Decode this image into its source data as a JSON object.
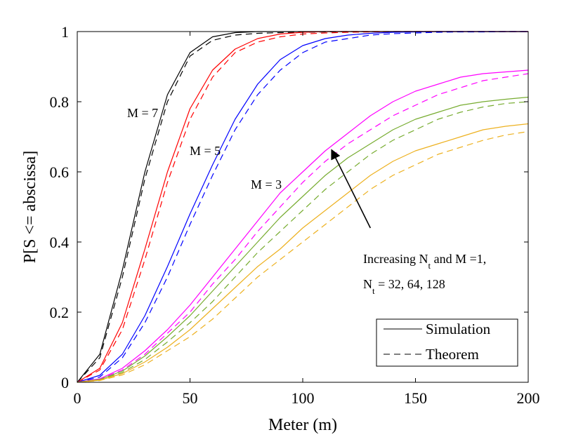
{
  "chart_data": {
    "type": "line",
    "xlabel": "Meter (m)",
    "ylabel": "P[S <= abscissa]",
    "xlim": [
      0,
      200
    ],
    "ylim": [
      0,
      1
    ],
    "xticks": [
      0,
      50,
      100,
      150,
      200
    ],
    "yticks": [
      0,
      0.2,
      0.4,
      0.6,
      0.8,
      1
    ],
    "xtick_labels": [
      "0",
      "50",
      "100",
      "150",
      "200"
    ],
    "ytick_labels": [
      "0",
      "0.2",
      "0.4",
      "0.6",
      "0.8",
      "1"
    ],
    "x": [
      0,
      10,
      20,
      30,
      40,
      50,
      60,
      70,
      80,
      90,
      100,
      110,
      120,
      130,
      140,
      150,
      160,
      170,
      180,
      190,
      200
    ],
    "series": [
      {
        "name": "M = 7, Simulation",
        "color": "#000000",
        "dash": false,
        "values": [
          0,
          0.08,
          0.32,
          0.6,
          0.82,
          0.94,
          0.985,
          0.997,
          1,
          1,
          1,
          1,
          1,
          1,
          1,
          1,
          1,
          1,
          1,
          1,
          1
        ]
      },
      {
        "name": "M = 7, Theorem",
        "color": "#000000",
        "dash": true,
        "values": [
          0,
          0.07,
          0.3,
          0.58,
          0.8,
          0.93,
          0.975,
          0.99,
          0.995,
          0.997,
          0.998,
          0.999,
          1,
          1,
          1,
          1,
          1,
          1,
          1,
          1,
          1
        ]
      },
      {
        "name": "M = 5, Simulation",
        "color": "#ff0000",
        "dash": false,
        "values": [
          0,
          0.04,
          0.17,
          0.38,
          0.6,
          0.78,
          0.89,
          0.95,
          0.98,
          0.993,
          0.998,
          1,
          1,
          1,
          1,
          1,
          1,
          1,
          1,
          1,
          1
        ]
      },
      {
        "name": "M = 5, Theorem",
        "color": "#ff0000",
        "dash": true,
        "values": [
          0,
          0.035,
          0.15,
          0.35,
          0.57,
          0.75,
          0.87,
          0.94,
          0.97,
          0.985,
          0.993,
          0.996,
          0.998,
          0.999,
          1,
          1,
          1,
          1,
          1,
          1,
          1
        ]
      },
      {
        "name": "M = 3, Simulation",
        "color": "#0000ff",
        "dash": false,
        "values": [
          0,
          0.02,
          0.08,
          0.19,
          0.33,
          0.48,
          0.62,
          0.75,
          0.85,
          0.92,
          0.96,
          0.98,
          0.99,
          0.995,
          0.998,
          0.999,
          1,
          1,
          1,
          1,
          1
        ]
      },
      {
        "name": "M = 3, Theorem",
        "color": "#0000ff",
        "dash": true,
        "values": [
          0,
          0.015,
          0.07,
          0.17,
          0.3,
          0.45,
          0.59,
          0.72,
          0.82,
          0.89,
          0.94,
          0.97,
          0.98,
          0.99,
          0.994,
          0.996,
          0.998,
          0.999,
          0.999,
          1,
          1
        ]
      },
      {
        "name": "N_t = 128, Simulation",
        "color": "#ff00ff",
        "dash": false,
        "values": [
          0,
          0.01,
          0.04,
          0.09,
          0.15,
          0.22,
          0.3,
          0.38,
          0.46,
          0.54,
          0.6,
          0.66,
          0.71,
          0.76,
          0.8,
          0.83,
          0.85,
          0.87,
          0.88,
          0.885,
          0.89
        ]
      },
      {
        "name": "N_t = 128, Theorem",
        "color": "#ff00ff",
        "dash": true,
        "values": [
          0,
          0.009,
          0.035,
          0.08,
          0.14,
          0.2,
          0.28,
          0.35,
          0.43,
          0.5,
          0.57,
          0.63,
          0.68,
          0.72,
          0.76,
          0.79,
          0.82,
          0.84,
          0.86,
          0.87,
          0.88
        ]
      },
      {
        "name": "N_t = 64, Simulation",
        "color": "#77ac30",
        "dash": false,
        "values": [
          0,
          0.008,
          0.032,
          0.075,
          0.13,
          0.19,
          0.26,
          0.33,
          0.4,
          0.47,
          0.53,
          0.59,
          0.64,
          0.68,
          0.72,
          0.75,
          0.77,
          0.79,
          0.8,
          0.807,
          0.813
        ]
      },
      {
        "name": "N_t = 64, Theorem",
        "color": "#77ac30",
        "dash": true,
        "values": [
          0,
          0.007,
          0.028,
          0.065,
          0.115,
          0.17,
          0.23,
          0.3,
          0.37,
          0.43,
          0.49,
          0.55,
          0.6,
          0.65,
          0.69,
          0.72,
          0.75,
          0.77,
          0.785,
          0.795,
          0.8
        ]
      },
      {
        "name": "N_t = 32, Simulation",
        "color": "#edb120",
        "dash": false,
        "values": [
          0,
          0.006,
          0.025,
          0.058,
          0.1,
          0.15,
          0.21,
          0.27,
          0.33,
          0.38,
          0.44,
          0.49,
          0.54,
          0.59,
          0.63,
          0.66,
          0.68,
          0.7,
          0.72,
          0.73,
          0.737
        ]
      },
      {
        "name": "N_t = 32, Theorem",
        "color": "#edb120",
        "dash": true,
        "values": [
          0,
          0.005,
          0.021,
          0.05,
          0.09,
          0.13,
          0.18,
          0.24,
          0.3,
          0.35,
          0.4,
          0.45,
          0.5,
          0.55,
          0.59,
          0.62,
          0.65,
          0.67,
          0.69,
          0.705,
          0.715
        ]
      }
    ],
    "annotations": {
      "m7": "M = 7",
      "m5": "M = 5",
      "m3": "M = 3",
      "increasing_line1_a": "Increasing N",
      "increasing_line1_sub": "t",
      "increasing_line1_b": " and M =1,",
      "increasing_line2_a": "N",
      "increasing_line2_sub": "t",
      "increasing_line2_b": " = 32, 64, 128"
    },
    "arrow": {
      "from": [
        130,
        0.44
      ],
      "to": [
        113,
        0.66
      ]
    },
    "legend": {
      "position": "bottom-right",
      "entries": [
        {
          "label": "Simulation",
          "dash": false
        },
        {
          "label": "Theorem",
          "dash": true
        }
      ]
    }
  }
}
